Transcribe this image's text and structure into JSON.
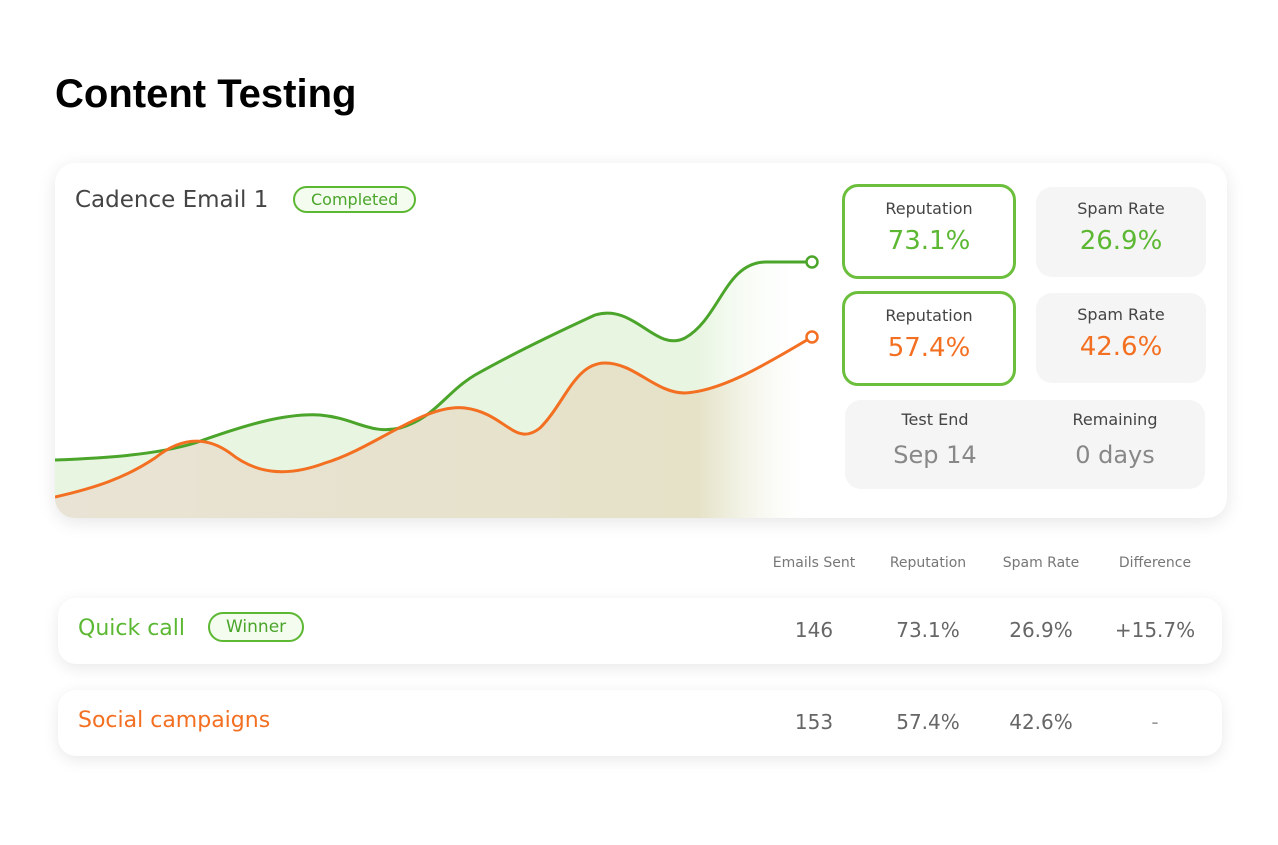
{
  "title": "Content Testing",
  "card": {
    "name": "Cadence Email 1",
    "status": "Completed",
    "stats": [
      {
        "label": "Reputation",
        "value": "73.1%"
      },
      {
        "label": "Spam Rate",
        "value": "26.9%"
      },
      {
        "label": "Reputation",
        "value": "57.4%"
      },
      {
        "label": "Spam Rate",
        "value": "42.6%"
      }
    ],
    "test_end": {
      "label": "Test End",
      "value": "Sep 14"
    },
    "remaining": {
      "label": "Remaining",
      "value": "0 days"
    }
  },
  "table": {
    "columns": [
      "Emails Sent",
      "Reputation",
      "Spam Rate",
      "Difference"
    ],
    "rows": [
      {
        "name": "Quick call",
        "badge": "Winner",
        "cells": [
          "146",
          "73.1%",
          "26.9%",
          "+15.7%"
        ]
      },
      {
        "name": "Social campaigns",
        "cells": [
          "153",
          "57.4%",
          "42.6%",
          "-"
        ]
      }
    ]
  }
}
